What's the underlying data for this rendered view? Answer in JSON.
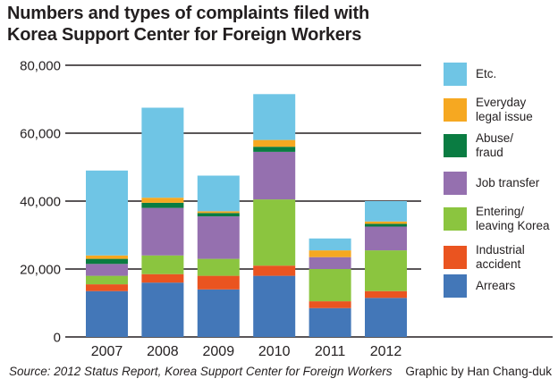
{
  "title": "Numbers and types of complaints filed with\nKorea Support Center for Foreign Workers",
  "footer": {
    "source": "Source: 2012 Status Report, Korea Support Center for Foreign Workers",
    "credit": "Graphic by Han Chang-duk"
  },
  "chart_data": {
    "type": "bar",
    "stacked": true,
    "title": "Numbers and types of complaints filed with Korea Support Center for Foreign Workers",
    "xlabel": "",
    "ylabel": "",
    "ylim": [
      0,
      80000
    ],
    "grid": "horizontal",
    "legend_position": "right",
    "axis_color": "#231f20",
    "categories": [
      "2007",
      "2008",
      "2009",
      "2010",
      "2011",
      "2012"
    ],
    "series": [
      {
        "name": "Arrears",
        "color": "#4377b8",
        "values": [
          13500,
          16000,
          14000,
          18000,
          8500,
          11500
        ]
      },
      {
        "name": "Industrial accident",
        "color": "#ea5420",
        "values": [
          2000,
          2500,
          4000,
          3000,
          2000,
          2000
        ]
      },
      {
        "name": "Entering/leaving Korea",
        "color": "#8bc53f",
        "values": [
          2500,
          5500,
          5000,
          19500,
          9500,
          12000
        ]
      },
      {
        "name": "Job transfer",
        "color": "#9570af",
        "values": [
          3500,
          14000,
          12500,
          14000,
          3500,
          7000
        ]
      },
      {
        "name": "Abuse/fraud",
        "color": "#0a7c42",
        "values": [
          1500,
          1500,
          1000,
          1500,
          0,
          800
        ]
      },
      {
        "name": "Everyday legal issue",
        "color": "#f6a821",
        "values": [
          1000,
          1500,
          500,
          2000,
          2000,
          700
        ]
      },
      {
        "name": "Etc.",
        "color": "#6fc5e5",
        "values": [
          25000,
          26500,
          10500,
          13500,
          3500,
          6000
        ]
      }
    ],
    "totals": [
      49000,
      67500,
      47500,
      71500,
      29000,
      40000
    ],
    "y_ticks": [
      {
        "value": 0,
        "label": "0"
      },
      {
        "value": 20000,
        "label": "20,000"
      },
      {
        "value": 40000,
        "label": "40,000"
      },
      {
        "value": 60000,
        "label": "60,000"
      },
      {
        "value": 80000,
        "label": "80,000"
      }
    ],
    "legend": [
      {
        "label": "Etc.",
        "color": "#6fc5e5"
      },
      {
        "label": "Everyday\nlegal issue",
        "color": "#f6a821"
      },
      {
        "label": "Abuse/\nfraud",
        "color": "#0a7c42"
      },
      {
        "label": "Job transfer",
        "color": "#9570af"
      },
      {
        "label": "Entering/\nleaving Korea",
        "color": "#8bc53f"
      },
      {
        "label": "Industrial\naccident",
        "color": "#ea5420"
      },
      {
        "label": "Arrears",
        "color": "#4377b8"
      }
    ]
  }
}
